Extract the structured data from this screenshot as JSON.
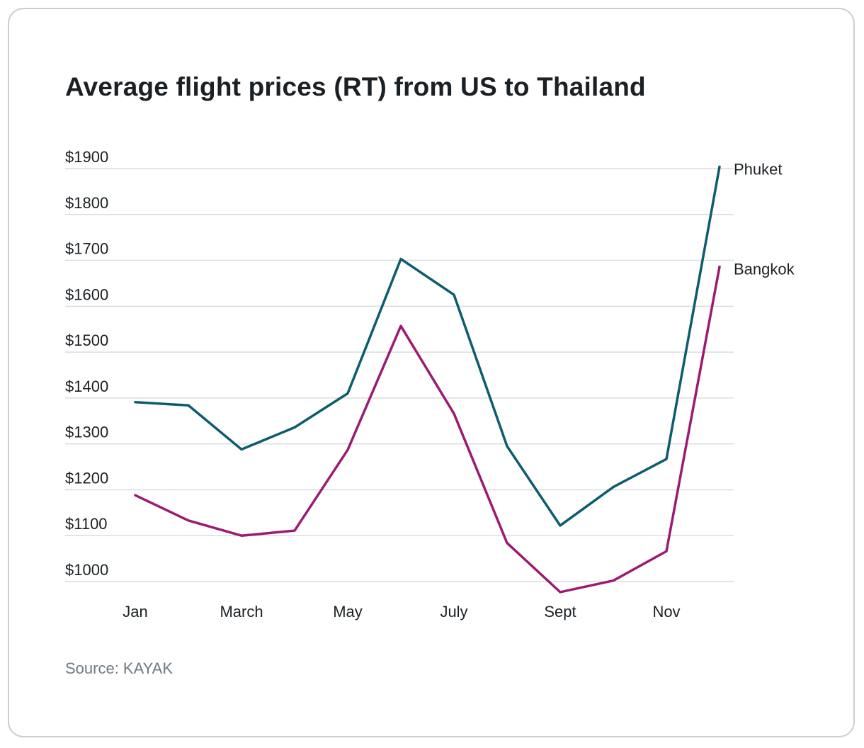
{
  "source": "Source: KAYAK",
  "chart_data": {
    "type": "line",
    "title": "Average flight prices (RT) from US to Thailand",
    "xlabel": "",
    "ylabel": "",
    "x": [
      1,
      2,
      3,
      4,
      5,
      6,
      7,
      8,
      9,
      10,
      11,
      12
    ],
    "x_ticks": [
      {
        "x": 1,
        "label": "Jan"
      },
      {
        "x": 3,
        "label": "March"
      },
      {
        "x": 5,
        "label": "May"
      },
      {
        "x": 7,
        "label": "July"
      },
      {
        "x": 9,
        "label": "Sept"
      },
      {
        "x": 11,
        "label": "Nov"
      }
    ],
    "y_ticks": [
      1000,
      1100,
      1200,
      1300,
      1400,
      1500,
      1600,
      1700,
      1800,
      1900
    ],
    "y_tick_labels": [
      "$1000",
      "$1100",
      "$1200",
      "$1300",
      "$1400",
      "$1500",
      "$1600",
      "$1700",
      "$1800",
      "$1900"
    ],
    "ylim": [
      1000,
      1900
    ],
    "grid": "horizontal",
    "legend": "end-of-line labels",
    "series": [
      {
        "name": "Phuket",
        "color": "#0b5d6e",
        "values": [
          1391,
          1384,
          1288,
          1336,
          1410,
          1703,
          1625,
          1295,
          1122,
          1206,
          1267,
          1904
        ]
      },
      {
        "name": "Bangkok",
        "color": "#9c1b72",
        "values": [
          1188,
          1133,
          1100,
          1111,
          1287,
          1557,
          1366,
          1084,
          977,
          1002,
          1066,
          1686
        ]
      }
    ]
  }
}
